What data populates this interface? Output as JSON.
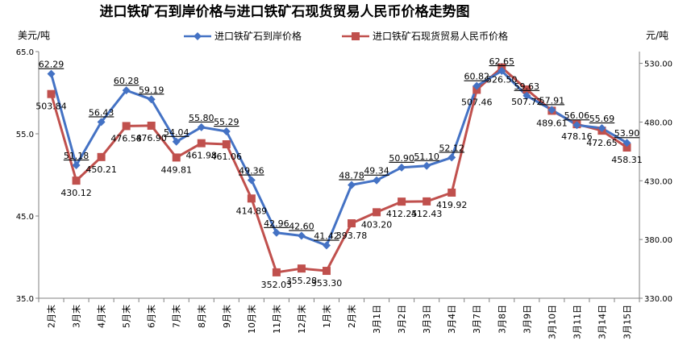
{
  "title": "进口铁矿石到岸价格与进口铁矿石现货贸易人民币价格走势图",
  "left_unit": "美元/吨",
  "right_unit": "元/吨",
  "colors": {
    "usd": "#4472C4",
    "cny": "#C0504D"
  },
  "chart_data": {
    "type": "line",
    "title": "进口铁矿石到岸价格与进口铁矿石现货贸易人民币价格走势图",
    "categories": [
      "2月末",
      "3月末",
      "4月末",
      "5月末",
      "6月末",
      "7月末",
      "8月末",
      "9月末",
      "10月末",
      "11月末",
      "12月末",
      "1月末",
      "2月末",
      "3月1日",
      "3月2日",
      "3月3日",
      "3月4日",
      "3月7日",
      "3月8日",
      "3月9日",
      "3月10日",
      "3月11日",
      "3月14日",
      "3月15日"
    ],
    "series": [
      {
        "name": "进口铁矿石到岸价格",
        "axis": "left",
        "unit": "美元/吨",
        "values": [
          62.29,
          51.18,
          56.43,
          60.28,
          59.19,
          54.04,
          55.8,
          55.29,
          49.36,
          42.96,
          42.6,
          41.42,
          48.78,
          49.34,
          50.9,
          51.1,
          52.12,
          60.82,
          62.65,
          59.63,
          57.91,
          56.06,
          55.69,
          53.9
        ],
        "labels": [
          "62.29",
          "51.18",
          "56.43",
          "60.28",
          "59.19",
          "54.04",
          "55.80",
          "55.29",
          "49.36",
          "42.96",
          "42.60",
          "41.42",
          "48.78",
          "49.34",
          "50.90",
          "51.10",
          "52.12",
          "60.82",
          "62.65",
          "59.63",
          "57.91",
          "56.06",
          "55.69",
          "53.90"
        ]
      },
      {
        "name": "进口铁矿石现货贸易人民币价格",
        "axis": "right",
        "unit": "元/吨",
        "values": [
          503.84,
          430.12,
          450.21,
          476.58,
          476.9,
          449.81,
          461.98,
          461.06,
          414.89,
          352.03,
          355.28,
          353.3,
          393.78,
          403.2,
          412.25,
          412.43,
          419.92,
          507.46,
          526.5,
          507.72,
          489.61,
          478.16,
          472.65,
          458.31
        ],
        "labels": [
          "503.84",
          "430.12",
          "450.21",
          "476.58",
          "476.90",
          "449.81",
          "461.98",
          "461.06",
          "414.89",
          "352.03",
          "355.28",
          "353.30",
          "393.78",
          "403.20",
          "412.25",
          "412.43",
          "419.92",
          "507.46",
          "526.50",
          "507.72",
          "489.61",
          "478.16",
          "472.65",
          "458.31"
        ]
      }
    ],
    "y_left": {
      "ylim": [
        35,
        65
      ],
      "ticks": [
        "35.0",
        "45.0",
        "55.0",
        "65.0"
      ]
    },
    "y_right": {
      "ylim": [
        330,
        540
      ],
      "ticks": [
        "330.00",
        "380.00",
        "430.00",
        "480.00",
        "530.00"
      ]
    },
    "grid": false,
    "legend": "top-center"
  }
}
